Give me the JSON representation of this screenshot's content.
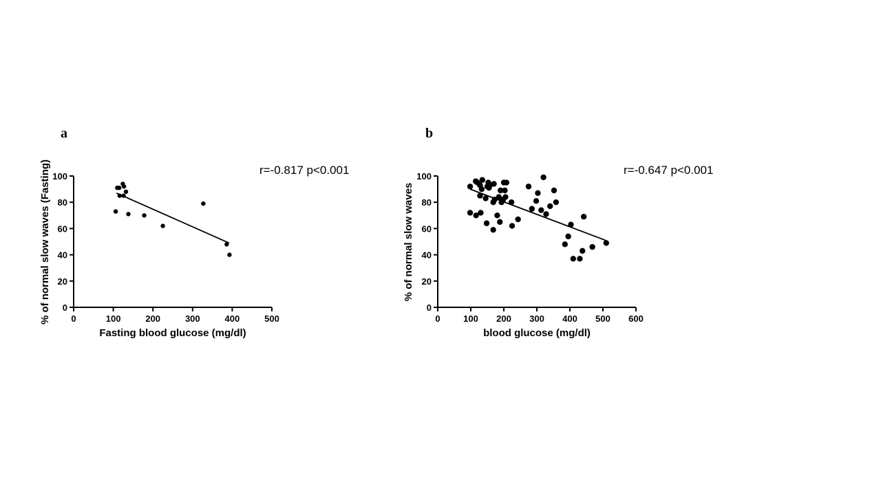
{
  "chart_data": [
    {
      "type": "scatter",
      "panel_label": "a",
      "xlabel": "Fasting blood glucose (mg/dl)",
      "ylabel": "% of normal slow waves (Fasting)",
      "xlim": [
        0,
        500
      ],
      "ylim": [
        0,
        100
      ],
      "xticks": [
        0,
        100,
        200,
        300,
        400,
        500
      ],
      "yticks": [
        0,
        20,
        40,
        60,
        80,
        100
      ],
      "annotation": "r=-0.817 p<0.001",
      "grid": false,
      "marker_color": "#000000",
      "points": [
        {
          "x": 106,
          "y": 73
        },
        {
          "x": 110,
          "y": 91
        },
        {
          "x": 115,
          "y": 91
        },
        {
          "x": 116,
          "y": 85
        },
        {
          "x": 124,
          "y": 94
        },
        {
          "x": 126,
          "y": 85
        },
        {
          "x": 127,
          "y": 92
        },
        {
          "x": 132,
          "y": 88
        },
        {
          "x": 138,
          "y": 71
        },
        {
          "x": 178,
          "y": 70
        },
        {
          "x": 225,
          "y": 62
        },
        {
          "x": 327,
          "y": 79
        },
        {
          "x": 386,
          "y": 48
        },
        {
          "x": 393,
          "y": 40
        }
      ],
      "trendline": {
        "x": [
          108,
          392
        ],
        "y": [
          87,
          49
        ]
      }
    },
    {
      "type": "scatter",
      "panel_label": "b",
      "xlabel": "blood glucose (mg/dl)",
      "ylabel": "% of normal slow waves",
      "xlim": [
        0,
        600
      ],
      "ylim": [
        0,
        100
      ],
      "xticks": [
        0,
        100,
        200,
        300,
        400,
        500,
        600
      ],
      "yticks": [
        0,
        20,
        40,
        60,
        80,
        100
      ],
      "annotation": "r=-0.647 p<0.001",
      "grid": false,
      "marker_color": "#000000",
      "points": [
        {
          "x": 98,
          "y": 92
        },
        {
          "x": 98,
          "y": 72
        },
        {
          "x": 115,
          "y": 96
        },
        {
          "x": 116,
          "y": 70
        },
        {
          "x": 120,
          "y": 95
        },
        {
          "x": 128,
          "y": 93
        },
        {
          "x": 128,
          "y": 85
        },
        {
          "x": 130,
          "y": 72
        },
        {
          "x": 133,
          "y": 90
        },
        {
          "x": 135,
          "y": 97
        },
        {
          "x": 145,
          "y": 83
        },
        {
          "x": 148,
          "y": 64
        },
        {
          "x": 150,
          "y": 92
        },
        {
          "x": 153,
          "y": 95
        },
        {
          "x": 155,
          "y": 91
        },
        {
          "x": 158,
          "y": 93
        },
        {
          "x": 168,
          "y": 80
        },
        {
          "x": 168,
          "y": 59
        },
        {
          "x": 170,
          "y": 94
        },
        {
          "x": 172,
          "y": 82
        },
        {
          "x": 180,
          "y": 70
        },
        {
          "x": 185,
          "y": 84
        },
        {
          "x": 188,
          "y": 65
        },
        {
          "x": 190,
          "y": 89
        },
        {
          "x": 193,
          "y": 80
        },
        {
          "x": 198,
          "y": 82
        },
        {
          "x": 200,
          "y": 95
        },
        {
          "x": 203,
          "y": 89
        },
        {
          "x": 205,
          "y": 84
        },
        {
          "x": 208,
          "y": 95
        },
        {
          "x": 223,
          "y": 80
        },
        {
          "x": 225,
          "y": 62
        },
        {
          "x": 243,
          "y": 67
        },
        {
          "x": 275,
          "y": 92
        },
        {
          "x": 285,
          "y": 75
        },
        {
          "x": 298,
          "y": 81
        },
        {
          "x": 303,
          "y": 87
        },
        {
          "x": 313,
          "y": 74
        },
        {
          "x": 320,
          "y": 99
        },
        {
          "x": 328,
          "y": 71
        },
        {
          "x": 340,
          "y": 77
        },
        {
          "x": 352,
          "y": 89
        },
        {
          "x": 358,
          "y": 80
        },
        {
          "x": 385,
          "y": 48
        },
        {
          "x": 395,
          "y": 54
        },
        {
          "x": 403,
          "y": 63
        },
        {
          "x": 410,
          "y": 37
        },
        {
          "x": 430,
          "y": 37
        },
        {
          "x": 438,
          "y": 43
        },
        {
          "x": 442,
          "y": 69
        },
        {
          "x": 468,
          "y": 46
        },
        {
          "x": 510,
          "y": 49
        }
      ],
      "trendline": {
        "x": [
          98,
          508
        ],
        "y": [
          90,
          51
        ]
      }
    }
  ]
}
